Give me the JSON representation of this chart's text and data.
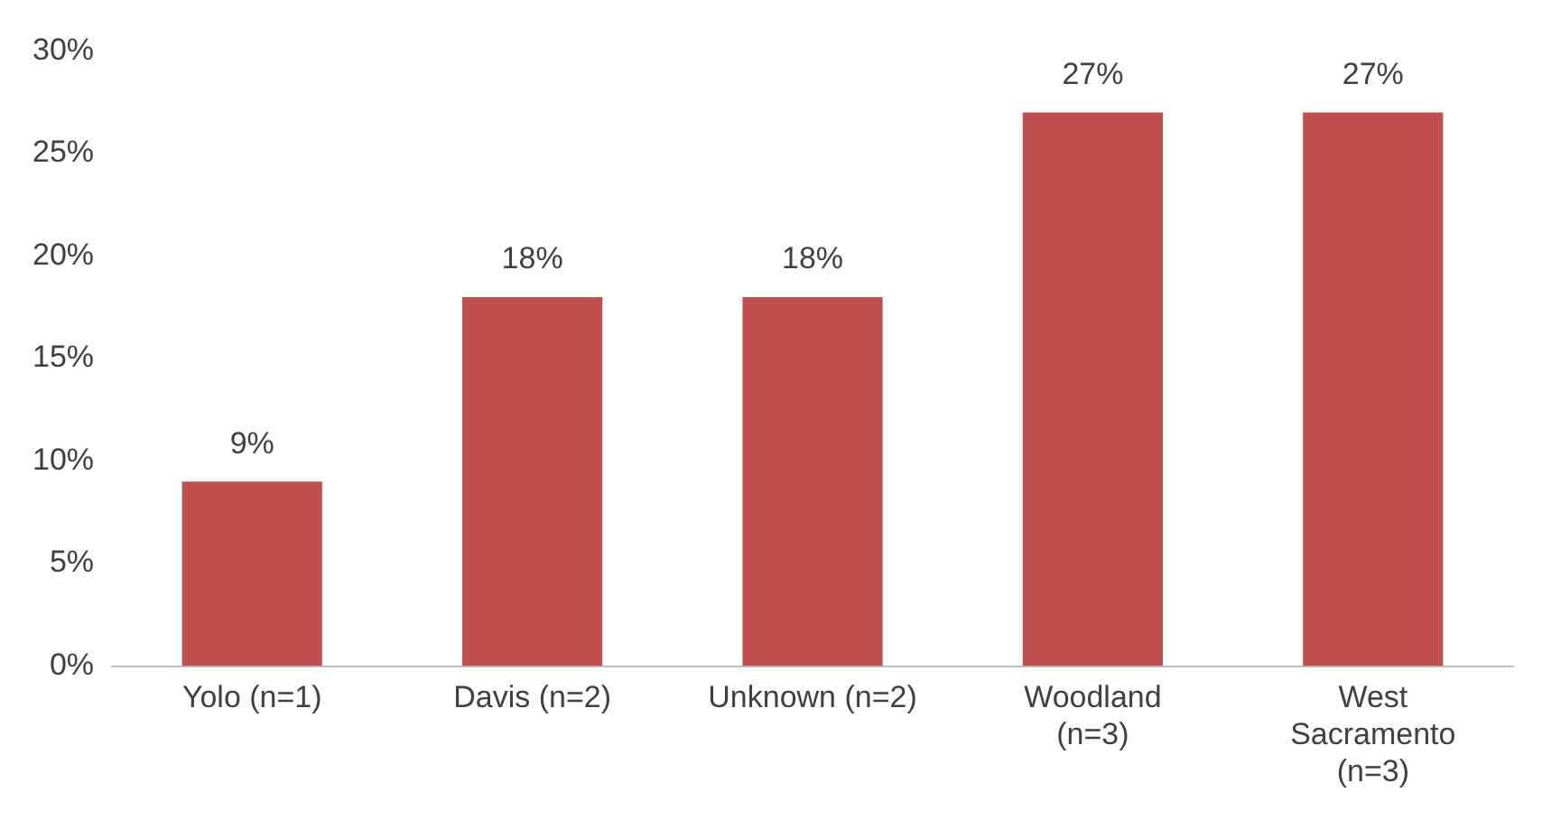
{
  "chart_data": {
    "type": "bar",
    "categories": [
      "Yolo (n=1)",
      "Davis (n=2)",
      "Unknown (n=2)",
      "Woodland (n=3)",
      "West Sacramento (n=3)"
    ],
    "values": [
      9,
      18,
      18,
      27,
      27
    ],
    "value_labels": [
      "9%",
      "18%",
      "18%",
      "27%",
      "27%"
    ],
    "color": "#c0504d",
    "ylim": [
      0,
      30
    ],
    "yticks": [
      {
        "value": 0,
        "label": "0%"
      },
      {
        "value": 5,
        "label": "5%"
      },
      {
        "value": 10,
        "label": "10%"
      },
      {
        "value": 15,
        "label": "15%"
      },
      {
        "value": 20,
        "label": "20%"
      },
      {
        "value": 25,
        "label": "25%"
      },
      {
        "value": 30,
        "label": "30%"
      }
    ],
    "grid": false,
    "legend": false
  }
}
